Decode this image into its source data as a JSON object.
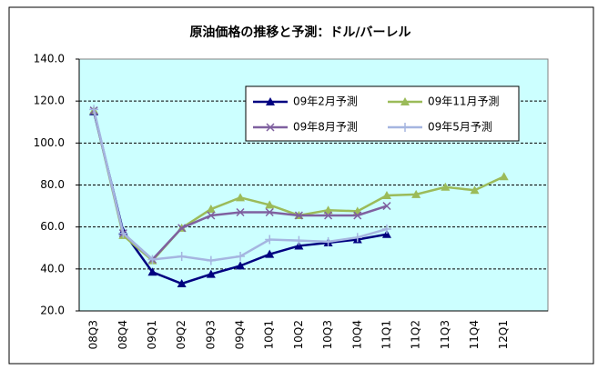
{
  "chart_data": {
    "type": "line",
    "title": "原油価格の推移と予測：ドル/バーレル",
    "categories": [
      "08Q3",
      "08Q4",
      "09Q1",
      "09Q2",
      "09Q3",
      "09Q4",
      "10Q1",
      "10Q2",
      "10Q3",
      "10Q4",
      "11Q1",
      "11Q2",
      "11Q3",
      "11Q4",
      "12Q1"
    ],
    "ylim": [
      20,
      140
    ],
    "yticks": [
      {
        "value": 20,
        "label": "20.0"
      },
      {
        "value": 40,
        "label": "40.0"
      },
      {
        "value": 60,
        "label": "60.0"
      },
      {
        "value": 80,
        "label": "80.0"
      },
      {
        "value": 100,
        "label": "100.0"
      },
      {
        "value": 120,
        "label": "120.0"
      },
      {
        "value": 140,
        "label": "140.0"
      }
    ],
    "grid": true,
    "series": [
      {
        "name": "09年2月予測",
        "color": "#000080",
        "marker": "triangle",
        "values": [
          115,
          58,
          38.5,
          33,
          37.5,
          41.5,
          47,
          51,
          52.5,
          54,
          56.5,
          null,
          null,
          null,
          null
        ]
      },
      {
        "name": "09年11月予測",
        "color": "#9bbb59",
        "marker": "triangle",
        "values": [
          115.5,
          56,
          44,
          59.5,
          68.5,
          74,
          70.5,
          65.5,
          68,
          67.5,
          75,
          75.5,
          79,
          77.5,
          84
        ]
      },
      {
        "name": "09年8月予測",
        "color": "#7f609f",
        "marker": "x",
        "values": [
          115.5,
          57,
          44.5,
          59.5,
          65.5,
          67,
          67,
          65.5,
          65.5,
          65.5,
          70,
          null,
          null,
          null,
          null
        ]
      },
      {
        "name": "09年5月予測",
        "color": "#a5b5e0",
        "marker": "plus",
        "values": [
          116,
          57,
          44.5,
          46,
          44,
          46,
          54,
          53.5,
          53,
          55,
          59,
          null,
          null,
          null,
          null
        ]
      }
    ]
  }
}
